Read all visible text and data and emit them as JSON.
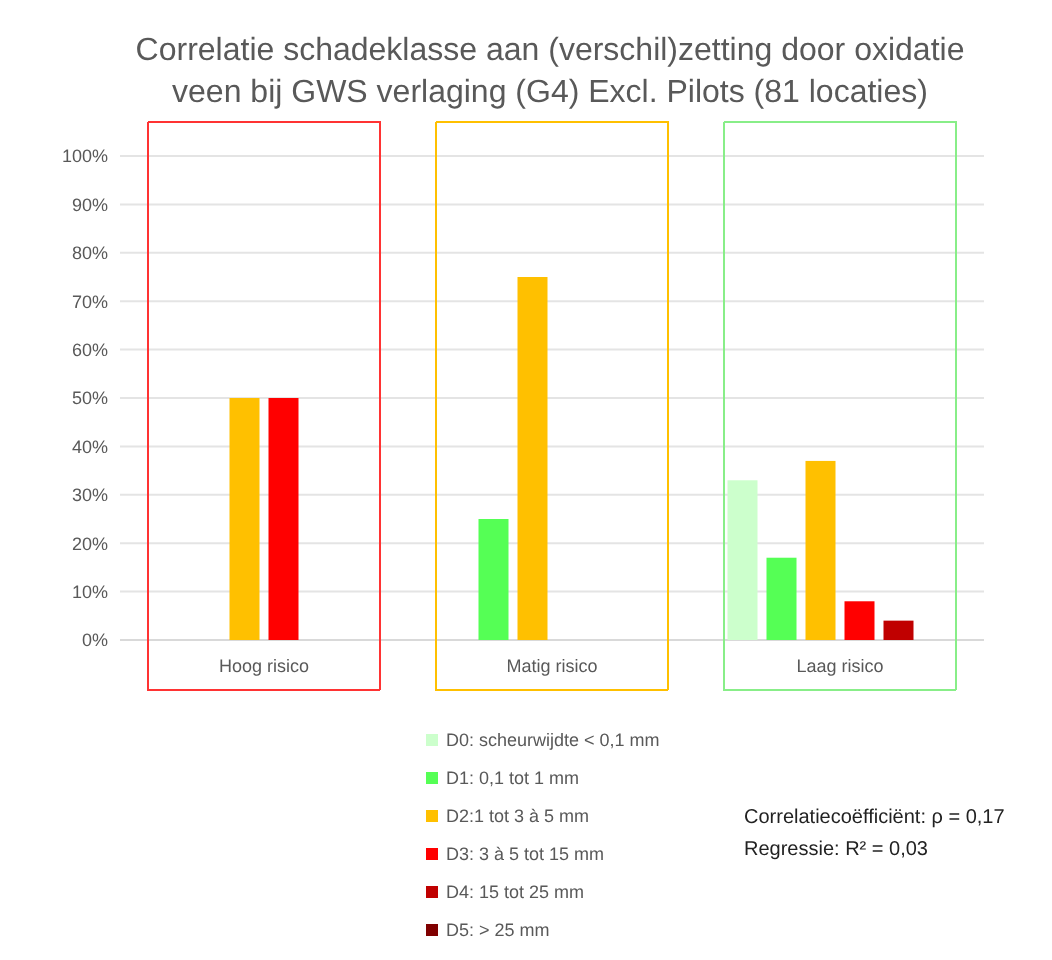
{
  "chart_data": {
    "type": "bar",
    "title": "Correlatie schadeklasse aan (verschil)zetting door oxidatie veen bij GWS verlaging (G4) Excl. Pilots (81 locaties)",
    "categories": [
      "Hoog risico",
      "Matig risico",
      "Laag risico"
    ],
    "series": [
      {
        "name": "D0: scheurwijdte < 0,1 mm",
        "color": "#ccffcc",
        "values": [
          0,
          0,
          33
        ]
      },
      {
        "name": "D1: 0,1 tot 1 mm",
        "color": "#55ff55",
        "values": [
          0,
          25,
          17
        ]
      },
      {
        "name": "D2:1 tot 3 à 5 mm",
        "color": "#ffc000",
        "values": [
          50,
          75,
          37
        ]
      },
      {
        "name": "D3: 3 à 5 tot 15 mm",
        "color": "#ff0000",
        "values": [
          50,
          0,
          8
        ]
      },
      {
        "name": "D4: 15 tot 25 mm",
        "color": "#c00000",
        "values": [
          0,
          0,
          4
        ]
      },
      {
        "name": "D5: > 25 mm",
        "color": "#800000",
        "values": [
          0,
          0,
          0
        ]
      }
    ],
    "ylim": [
      0,
      100
    ],
    "yticks": [
      {
        "value": 0,
        "label": "0%"
      },
      {
        "value": 10,
        "label": "10%"
      },
      {
        "value": 20,
        "label": "20%"
      },
      {
        "value": 30,
        "label": "30%"
      },
      {
        "value": 40,
        "label": "40%"
      },
      {
        "value": 50,
        "label": "50%"
      },
      {
        "value": 60,
        "label": "60%"
      },
      {
        "value": 70,
        "label": "70%"
      },
      {
        "value": 80,
        "label": "80%"
      },
      {
        "value": 90,
        "label": "90%"
      },
      {
        "value": 100,
        "label": "100%"
      }
    ],
    "grid": "y",
    "legend": "bottom",
    "annotations": [
      "Correlatiecoëfficiënt: ρ = 0,17",
      "Regressie: R² = 0,03"
    ]
  }
}
